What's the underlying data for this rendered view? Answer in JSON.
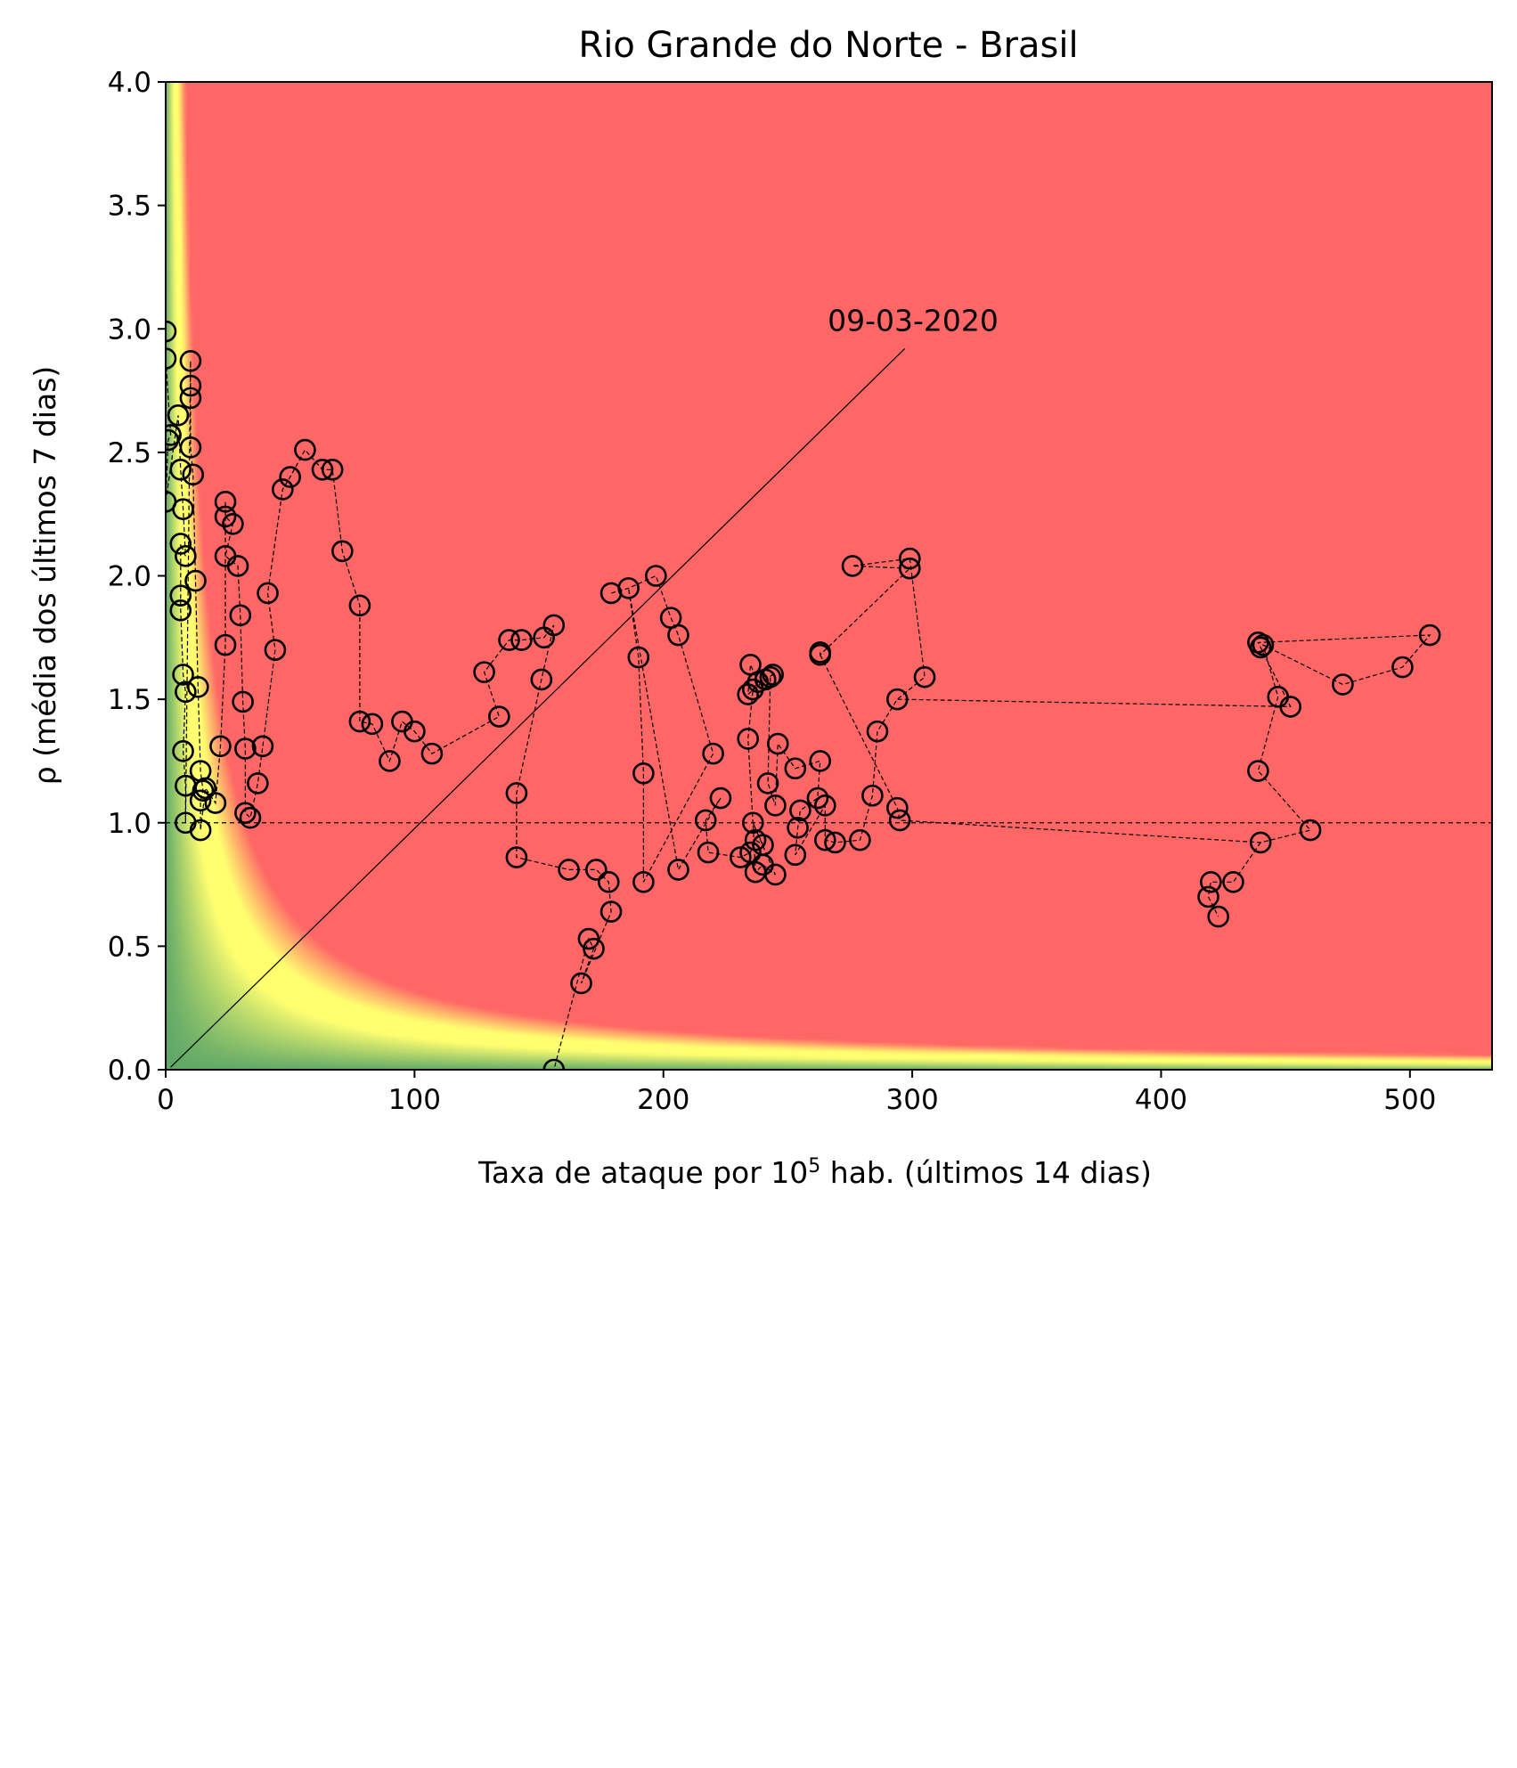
{
  "chart_data": {
    "type": "scatter",
    "title": "Rio Grande do Norte - Brasil",
    "xlabel_main": "Taxa de ataque por 10",
    "xlabel_sup": "5",
    "xlabel_rest": " hab. (últimos 14 dias)",
    "ylabel": "ρ (média dos últimos 7 dias)",
    "xlim": [
      0,
      533
    ],
    "ylim": [
      0,
      4
    ],
    "xticks": [
      0,
      100,
      200,
      300,
      400,
      500
    ],
    "yticks": [
      "0.0",
      "0.5",
      "1.0",
      "1.5",
      "2.0",
      "2.5",
      "3.0",
      "3.5",
      "4.0"
    ],
    "reference_line_y": 1.0,
    "background_gradient": "risk = x * y; green (low) → yellow (~20) → red (high)",
    "colors": {
      "green": "#5fa868",
      "yellow": "#ffff70",
      "red": "#ff6666",
      "marker": "#000000"
    },
    "annotation": {
      "text": "09-03-2020",
      "x": 2,
      "y": 0.01,
      "text_x": 266,
      "text_y": 3.0
    },
    "points": [
      [
        0,
        2.99
      ],
      [
        0,
        2.88
      ],
      [
        2,
        2.57
      ],
      [
        1,
        2.55
      ],
      [
        0,
        2.3
      ],
      [
        5,
        2.65
      ],
      [
        6,
        2.43
      ],
      [
        7,
        2.27
      ],
      [
        8,
        2.08
      ],
      [
        6,
        2.13
      ],
      [
        6,
        1.92
      ],
      [
        6,
        1.86
      ],
      [
        7,
        1.6
      ],
      [
        8,
        1.53
      ],
      [
        7,
        1.29
      ],
      [
        8,
        1.15
      ],
      [
        8,
        1.0
      ],
      [
        10,
        2.87
      ],
      [
        10,
        2.77
      ],
      [
        10,
        2.72
      ],
      [
        10,
        2.52
      ],
      [
        11,
        2.41
      ],
      [
        12,
        1.98
      ],
      [
        13,
        1.55
      ],
      [
        14,
        1.21
      ],
      [
        15,
        1.13
      ],
      [
        14,
        1.09
      ],
      [
        14,
        0.97
      ],
      [
        16,
        1.14
      ],
      [
        20,
        1.08
      ],
      [
        22,
        1.31
      ],
      [
        24,
        1.72
      ],
      [
        24,
        2.3
      ],
      [
        24,
        2.24
      ],
      [
        27,
        2.21
      ],
      [
        24,
        2.08
      ],
      [
        29,
        2.04
      ],
      [
        30,
        1.84
      ],
      [
        31,
        1.49
      ],
      [
        32,
        1.3
      ],
      [
        32,
        1.04
      ],
      [
        34,
        1.02
      ],
      [
        37,
        1.16
      ],
      [
        39,
        1.31
      ],
      [
        44,
        1.7
      ],
      [
        41,
        1.93
      ],
      [
        47,
        2.35
      ],
      [
        50,
        2.4
      ],
      [
        56,
        2.51
      ],
      [
        63,
        2.43
      ],
      [
        67,
        2.43
      ],
      [
        71,
        2.1
      ],
      [
        78,
        1.88
      ],
      [
        78,
        1.41
      ],
      [
        83,
        1.4
      ],
      [
        90,
        1.25
      ],
      [
        95,
        1.41
      ],
      [
        100,
        1.37
      ],
      [
        107,
        1.28
      ],
      [
        134,
        1.43
      ],
      [
        128,
        1.61
      ],
      [
        138,
        1.74
      ],
      [
        143,
        1.74
      ],
      [
        152,
        1.75
      ],
      [
        156,
        1.8
      ],
      [
        151,
        1.58
      ],
      [
        141,
        1.12
      ],
      [
        141,
        0.86
      ],
      [
        162,
        0.81
      ],
      [
        173,
        0.81
      ],
      [
        178,
        0.76
      ],
      [
        179,
        0.64
      ],
      [
        167,
        0.35
      ],
      [
        172,
        0.49
      ],
      [
        170,
        0.53
      ],
      [
        156,
        0.0
      ],
      [
        179,
        1.93
      ],
      [
        186,
        1.95
      ],
      [
        197,
        2.0
      ],
      [
        203,
        1.83
      ],
      [
        206,
        1.76
      ],
      [
        190,
        1.67
      ],
      [
        192,
        1.2
      ],
      [
        192,
        0.76
      ],
      [
        206,
        0.81
      ],
      [
        220,
        1.28
      ],
      [
        223,
        1.1
      ],
      [
        217,
        1.01
      ],
      [
        218,
        0.88
      ],
      [
        231,
        0.86
      ],
      [
        235,
        0.88
      ],
      [
        237,
        0.93
      ],
      [
        240,
        0.91
      ],
      [
        236,
        1.0
      ],
      [
        237,
        0.8
      ],
      [
        240,
        0.83
      ],
      [
        245,
        0.79
      ],
      [
        234,
        1.34
      ],
      [
        236,
        1.54
      ],
      [
        238,
        1.57
      ],
      [
        235,
        1.64
      ],
      [
        234,
        1.52
      ],
      [
        241,
        1.58
      ],
      [
        244,
        1.6
      ],
      [
        243,
        1.59
      ],
      [
        242,
        1.16
      ],
      [
        245,
        1.07
      ],
      [
        246,
        1.32
      ],
      [
        253,
        1.22
      ],
      [
        263,
        1.25
      ],
      [
        262,
        1.1
      ],
      [
        255,
        1.05
      ],
      [
        254,
        0.98
      ],
      [
        253,
        0.87
      ],
      [
        265,
        1.07
      ],
      [
        265,
        0.93
      ],
      [
        269,
        0.92
      ],
      [
        279,
        0.93
      ],
      [
        284,
        1.11
      ],
      [
        286,
        1.37
      ],
      [
        294,
        1.06
      ],
      [
        295,
        1.01
      ],
      [
        294,
        1.5
      ],
      [
        305,
        1.59
      ],
      [
        299,
        2.07
      ],
      [
        299,
        2.03
      ],
      [
        276,
        2.04
      ],
      [
        263,
        1.68
      ],
      [
        263,
        1.69
      ],
      [
        447,
        1.51
      ],
      [
        452,
        1.47
      ],
      [
        441,
        1.72
      ],
      [
        440,
        1.71
      ],
      [
        473,
        1.56
      ],
      [
        497,
        1.63
      ],
      [
        508,
        1.76
      ],
      [
        439,
        1.73
      ],
      [
        439,
        1.21
      ],
      [
        460,
        0.97
      ],
      [
        440,
        0.92
      ],
      [
        429,
        0.76
      ],
      [
        420,
        0.76
      ],
      [
        419,
        0.7
      ],
      [
        423,
        0.62
      ]
    ],
    "path": [
      [
        0,
        2.99
      ],
      [
        0,
        2.88
      ],
      [
        2,
        2.57
      ],
      [
        1,
        2.55
      ],
      [
        0,
        2.3
      ],
      [
        5,
        2.65
      ],
      [
        6,
        2.43
      ],
      [
        7,
        2.27
      ],
      [
        8,
        2.08
      ],
      [
        6,
        2.13
      ],
      [
        6,
        1.92
      ],
      [
        6,
        1.86
      ],
      [
        7,
        1.6
      ],
      [
        8,
        1.53
      ],
      [
        7,
        1.29
      ],
      [
        8,
        1.15
      ],
      [
        8,
        1.0
      ],
      [
        10,
        2.87
      ],
      [
        10,
        2.77
      ],
      [
        10,
        2.72
      ],
      [
        10,
        2.52
      ],
      [
        11,
        2.41
      ],
      [
        12,
        1.98
      ],
      [
        13,
        1.55
      ],
      [
        14,
        1.21
      ],
      [
        15,
        1.13
      ],
      [
        14,
        1.09
      ],
      [
        14,
        0.97
      ],
      [
        16,
        1.14
      ],
      [
        20,
        1.08
      ],
      [
        22,
        1.31
      ],
      [
        24,
        1.72
      ],
      [
        24,
        2.3
      ],
      [
        24,
        2.24
      ],
      [
        27,
        2.21
      ],
      [
        24,
        2.08
      ],
      [
        29,
        2.04
      ],
      [
        30,
        1.84
      ],
      [
        31,
        1.49
      ],
      [
        32,
        1.3
      ],
      [
        32,
        1.04
      ],
      [
        34,
        1.02
      ],
      [
        37,
        1.16
      ],
      [
        39,
        1.31
      ],
      [
        44,
        1.7
      ],
      [
        41,
        1.93
      ],
      [
        47,
        2.35
      ],
      [
        50,
        2.4
      ],
      [
        56,
        2.51
      ],
      [
        63,
        2.43
      ],
      [
        67,
        2.43
      ],
      [
        71,
        2.1
      ],
      [
        78,
        1.88
      ],
      [
        78,
        1.41
      ],
      [
        83,
        1.4
      ],
      [
        90,
        1.25
      ],
      [
        95,
        1.41
      ],
      [
        100,
        1.37
      ],
      [
        107,
        1.28
      ],
      [
        134,
        1.43
      ],
      [
        128,
        1.61
      ],
      [
        138,
        1.74
      ],
      [
        143,
        1.74
      ],
      [
        152,
        1.75
      ],
      [
        156,
        1.8
      ],
      [
        151,
        1.58
      ],
      [
        141,
        1.12
      ],
      [
        141,
        0.86
      ],
      [
        162,
        0.81
      ],
      [
        173,
        0.81
      ],
      [
        178,
        0.76
      ],
      [
        179,
        0.64
      ],
      [
        167,
        0.35
      ],
      [
        172,
        0.49
      ],
      [
        170,
        0.53
      ],
      [
        156,
        0.0
      ]
    ],
    "path2": [
      [
        179,
        1.93
      ],
      [
        186,
        1.95
      ],
      [
        197,
        2.0
      ],
      [
        203,
        1.83
      ],
      [
        206,
        1.76
      ],
      [
        220,
        1.28
      ],
      [
        192,
        0.76
      ],
      [
        192,
        1.2
      ],
      [
        190,
        1.67
      ],
      [
        186,
        1.95
      ],
      [
        206,
        0.81
      ],
      [
        223,
        1.1
      ],
      [
        217,
        1.01
      ],
      [
        218,
        0.88
      ],
      [
        231,
        0.86
      ],
      [
        235,
        0.88
      ],
      [
        237,
        0.93
      ],
      [
        240,
        0.91
      ],
      [
        236,
        1.0
      ],
      [
        237,
        0.8
      ],
      [
        240,
        0.83
      ],
      [
        245,
        0.79
      ],
      [
        236,
        1.0
      ],
      [
        234,
        1.34
      ],
      [
        236,
        1.54
      ],
      [
        238,
        1.57
      ],
      [
        235,
        1.64
      ],
      [
        234,
        1.52
      ],
      [
        241,
        1.58
      ],
      [
        244,
        1.6
      ],
      [
        243,
        1.59
      ],
      [
        242,
        1.16
      ],
      [
        245,
        1.07
      ],
      [
        246,
        1.32
      ],
      [
        253,
        1.22
      ],
      [
        263,
        1.25
      ],
      [
        262,
        1.1
      ],
      [
        255,
        1.05
      ],
      [
        254,
        0.98
      ],
      [
        253,
        0.87
      ],
      [
        265,
        1.07
      ],
      [
        265,
        0.93
      ],
      [
        269,
        0.92
      ],
      [
        279,
        0.93
      ],
      [
        284,
        1.11
      ],
      [
        286,
        1.37
      ],
      [
        294,
        1.5
      ],
      [
        305,
        1.59
      ],
      [
        299,
        2.07
      ],
      [
        276,
        2.04
      ],
      [
        299,
        2.03
      ],
      [
        263,
        1.68
      ],
      [
        263,
        1.69
      ],
      [
        263,
        1.68
      ],
      [
        294,
        1.06
      ],
      [
        295,
        1.01
      ],
      [
        440,
        0.92
      ],
      [
        460,
        0.97
      ],
      [
        439,
        1.21
      ],
      [
        447,
        1.51
      ],
      [
        441,
        1.72
      ],
      [
        473,
        1.56
      ],
      [
        497,
        1.63
      ],
      [
        508,
        1.76
      ],
      [
        439,
        1.73
      ],
      [
        440,
        1.71
      ],
      [
        452,
        1.47
      ],
      [
        294,
        1.5
      ]
    ],
    "path3": [
      [
        440,
        0.92
      ],
      [
        429,
        0.76
      ],
      [
        420,
        0.76
      ],
      [
        419,
        0.7
      ],
      [
        423,
        0.62
      ]
    ]
  }
}
